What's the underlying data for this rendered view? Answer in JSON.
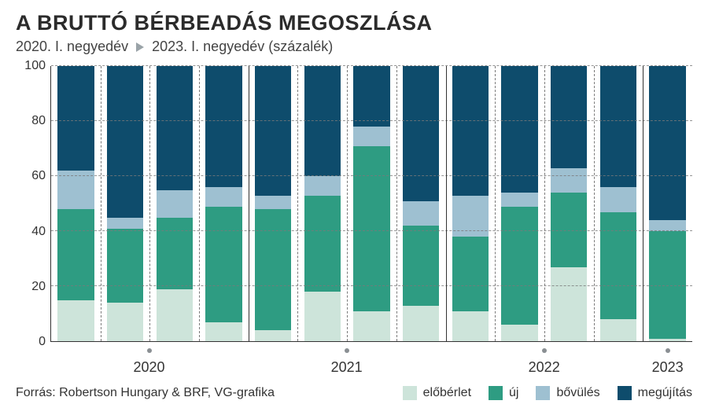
{
  "title": "A BRUTTÓ BÉRBEADÁS MEGOSZLÁSA",
  "subtitle_from": "2020. I. negyedév",
  "subtitle_to": "2023. I. negyedév (százalék)",
  "source": "Forrás: Robertson Hungary & BRF, VG-grafika",
  "colors": {
    "eloberlet": "#cde4da",
    "uj": "#2e9c82",
    "bovules": "#9ec0d1",
    "megujitas": "#0e4c6c",
    "grid": "#7a7a7a",
    "axis": "#333333",
    "bg": "#ffffff",
    "dot": "#8a8f93"
  },
  "legend": [
    {
      "key": "eloberlet",
      "label": "előbérlet"
    },
    {
      "key": "uj",
      "label": "új"
    },
    {
      "key": "bovules",
      "label": "bővülés"
    },
    {
      "key": "megujitas",
      "label": "megújítás"
    }
  ],
  "yaxis": {
    "min": 0,
    "max": 100,
    "ticks": [
      0,
      20,
      40,
      60,
      80,
      100
    ]
  },
  "bar_width_pct": 74,
  "year_groups": [
    {
      "label": "2020",
      "bars": 4
    },
    {
      "label": "2021",
      "bars": 4
    },
    {
      "label": "2022",
      "bars": 4
    },
    {
      "label": "2023",
      "bars": 1
    }
  ],
  "bars": [
    {
      "eloberlet": 15,
      "uj": 33,
      "bovules": 14,
      "megujitas": 38
    },
    {
      "eloberlet": 14,
      "uj": 27,
      "bovules": 4,
      "megujitas": 55
    },
    {
      "eloberlet": 19,
      "uj": 26,
      "bovules": 10,
      "megujitas": 45
    },
    {
      "eloberlet": 7,
      "uj": 42,
      "bovules": 7,
      "megujitas": 44
    },
    {
      "eloberlet": 4,
      "uj": 44,
      "bovules": 5,
      "megujitas": 47
    },
    {
      "eloberlet": 18,
      "uj": 35,
      "bovules": 7,
      "megujitas": 40
    },
    {
      "eloberlet": 11,
      "uj": 60,
      "bovules": 7,
      "megujitas": 22
    },
    {
      "eloberlet": 13,
      "uj": 29,
      "bovules": 9,
      "megujitas": 49
    },
    {
      "eloberlet": 11,
      "uj": 27,
      "bovules": 15,
      "megujitas": 47
    },
    {
      "eloberlet": 6,
      "uj": 43,
      "bovules": 5,
      "megujitas": 46
    },
    {
      "eloberlet": 27,
      "uj": 27,
      "bovules": 9,
      "megujitas": 37
    },
    {
      "eloberlet": 8,
      "uj": 39,
      "bovules": 9,
      "megujitas": 44
    },
    {
      "eloberlet": 1,
      "uj": 39,
      "bovules": 4,
      "megujitas": 56
    }
  ]
}
